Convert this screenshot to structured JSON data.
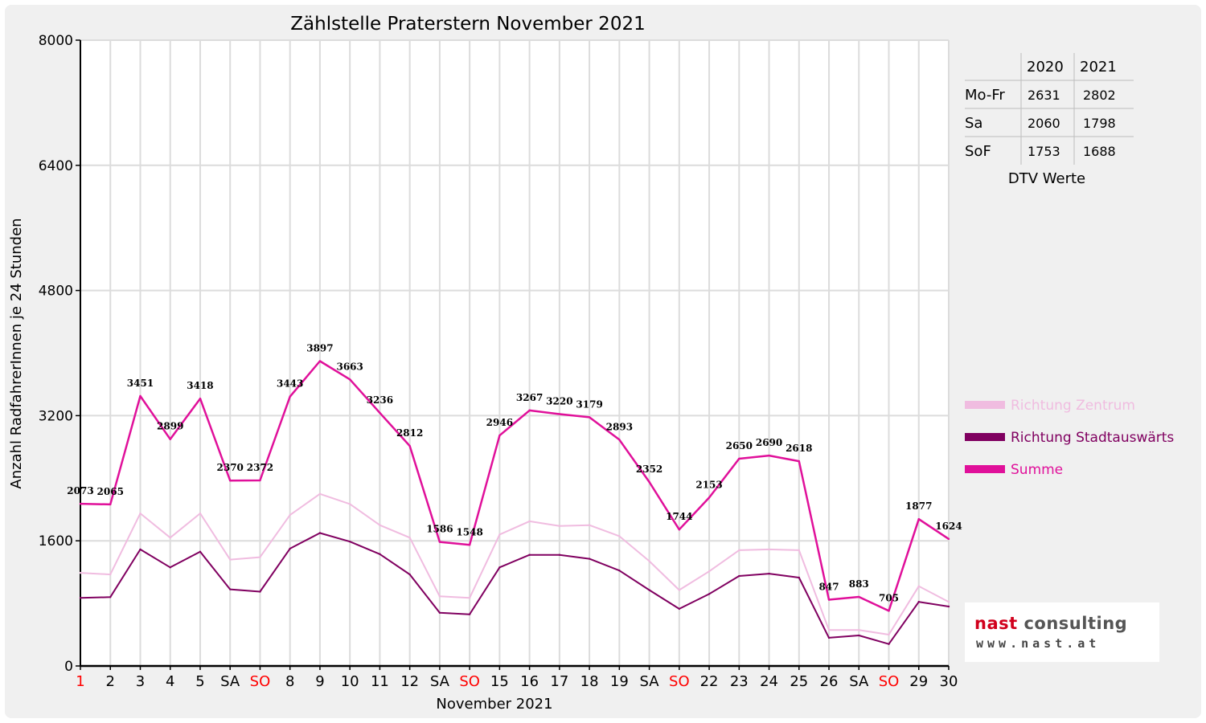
{
  "chart_data": {
    "type": "line",
    "title": "Zählstelle Praterstern November 2021",
    "xlabel": "November 2021",
    "ylabel": "Anzahl RadfahrerInnen je 24 Stunden",
    "ylim": [
      0,
      8000
    ],
    "yticks": [
      0,
      1600,
      3200,
      4800,
      6400,
      8000
    ],
    "grid": true,
    "legend_position": "right",
    "categories": [
      "1",
      "2",
      "3",
      "4",
      "5",
      "SA",
      "SO",
      "8",
      "9",
      "10",
      "11",
      "12",
      "SA",
      "SO",
      "15",
      "16",
      "17",
      "18",
      "19",
      "SA",
      "SO",
      "22",
      "23",
      "24",
      "25",
      "26",
      "SA",
      "SO",
      "29",
      "30"
    ],
    "red_labels": [
      0,
      6,
      13,
      20,
      27
    ],
    "series": [
      {
        "name": "Richtung Zentrum",
        "color": "#f0bce0",
        "values": [
          1190,
          1170,
          1950,
          1640,
          1950,
          1360,
          1390,
          1930,
          2200,
          2070,
          1800,
          1640,
          890,
          870,
          1680,
          1850,
          1790,
          1800,
          1660,
          1340,
          970,
          1210,
          1480,
          1490,
          1480,
          460,
          460,
          400,
          1020,
          820
        ]
      },
      {
        "name": "Richtung Stadtauswärts",
        "color": "#800060",
        "values": [
          870,
          880,
          1490,
          1260,
          1460,
          980,
          950,
          1500,
          1700,
          1590,
          1430,
          1170,
          680,
          660,
          1260,
          1420,
          1420,
          1370,
          1220,
          970,
          730,
          920,
          1150,
          1180,
          1130,
          360,
          390,
          280,
          820,
          760
        ]
      },
      {
        "name": "Summe",
        "color": "#e0109a",
        "values": [
          2073,
          2065,
          3451,
          2899,
          3418,
          2370,
          2372,
          3443,
          3897,
          3663,
          3236,
          2812,
          1586,
          1548,
          2946,
          3267,
          3220,
          3179,
          2893,
          2352,
          1744,
          2153,
          2650,
          2690,
          2618,
          847,
          883,
          705,
          1877,
          1624
        ]
      }
    ],
    "data_labels": [
      "2073",
      "2065",
      "3451",
      "2899",
      "3418",
      "2370",
      "2372",
      "3443",
      "3897",
      "3663",
      "3236",
      "2812",
      "1586",
      "1548",
      "2946",
      "3267",
      "3220",
      "3179",
      "2893",
      "2352",
      "1744",
      "2153",
      "2650",
      "2690",
      "2618",
      "847",
      "883",
      "705",
      "1877",
      "1624"
    ]
  },
  "table": {
    "headers": [
      "",
      "2020",
      "2021"
    ],
    "rows": [
      [
        "Mo-Fr",
        "2631",
        "2802"
      ],
      [
        "Sa",
        "2060",
        "1798"
      ],
      [
        "SoF",
        "1753",
        "1688"
      ]
    ],
    "caption": "DTV Werte"
  },
  "logo": {
    "name_part1": "nast",
    "name_part2": " consulting",
    "url": "www.nast.at"
  }
}
